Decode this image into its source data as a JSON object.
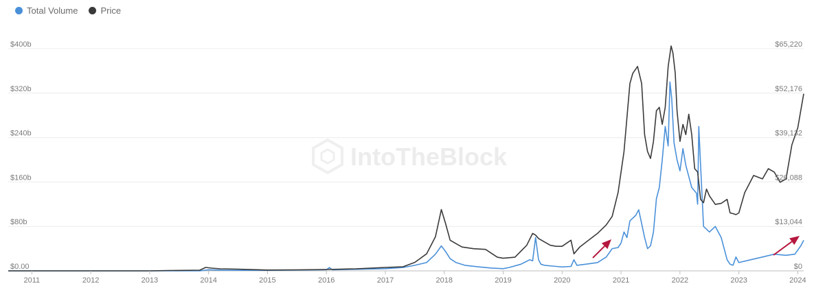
{
  "legend": {
    "items": [
      {
        "label": "Total Volume",
        "color": "#4a90d9"
      },
      {
        "label": "Price",
        "color": "#3a3a3a"
      }
    ]
  },
  "watermark": "IntoTheBlock",
  "chart_data": {
    "type": "line",
    "title": "",
    "xlabel": "",
    "x_ticks": [
      "2011",
      "2012",
      "2013",
      "2014",
      "2015",
      "2016",
      "2017",
      "2018",
      "2019",
      "2020",
      "2021",
      "2022",
      "2023",
      "2024"
    ],
    "xlim": [
      2010.6,
      2024.1
    ],
    "left_axis": {
      "ticks": [
        "$0.00",
        "$80b",
        "$160b",
        "$240b",
        "$320b",
        "$400b"
      ],
      "ylim": [
        0,
        400
      ]
    },
    "right_axis": {
      "ticks": [
        "$0",
        "$13,044",
        "$26,088",
        "$39,132",
        "$52,176",
        "$65,220"
      ],
      "ylim": [
        0,
        65220
      ]
    },
    "grid": true,
    "legend_position": "top-left",
    "series": [
      {
        "name": "Total Volume",
        "axis": "left",
        "unit": "b",
        "color": "#4a90d9",
        "x": [
          2010.6,
          2013.85,
          2014.0,
          2014.3,
          2015.0,
          2016.0,
          2016.05,
          2016.1,
          2016.6,
          2017.0,
          2017.3,
          2017.5,
          2017.7,
          2017.85,
          2017.95,
          2018.02,
          2018.1,
          2018.2,
          2018.35,
          2018.6,
          2018.8,
          2019.0,
          2019.1,
          2019.3,
          2019.45,
          2019.5,
          2019.55,
          2019.6,
          2019.62,
          2019.64,
          2019.7,
          2019.9,
          2020.0,
          2020.15,
          2020.2,
          2020.25,
          2020.4,
          2020.6,
          2020.75,
          2020.85,
          2020.95,
          2021.0,
          2021.05,
          2021.1,
          2021.15,
          2021.25,
          2021.3,
          2021.35,
          2021.4,
          2021.45,
          2021.5,
          2021.55,
          2021.6,
          2021.65,
          2021.7,
          2021.75,
          2021.8,
          2021.83,
          2021.86,
          2021.9,
          2021.95,
          2022.0,
          2022.05,
          2022.1,
          2022.15,
          2022.2,
          2022.28,
          2022.3,
          2022.32,
          2022.35,
          2022.4,
          2022.5,
          2022.6,
          2022.7,
          2022.75,
          2022.8,
          2022.85,
          2022.9,
          2022.95,
          2023.0,
          2023.2,
          2023.4,
          2023.6,
          2023.8,
          2023.95,
          2024.05,
          2024.1
        ],
        "values": [
          0,
          0,
          2,
          1,
          1,
          2,
          6,
          2,
          3,
          4,
          6,
          10,
          15,
          30,
          45,
          35,
          22,
          15,
          10,
          7,
          5,
          4,
          6,
          12,
          20,
          18,
          60,
          20,
          16,
          12,
          10,
          8,
          7,
          8,
          20,
          10,
          12,
          15,
          25,
          40,
          42,
          50,
          70,
          60,
          90,
          100,
          110,
          85,
          60,
          40,
          45,
          70,
          130,
          150,
          200,
          260,
          225,
          340,
          310,
          230,
          200,
          180,
          220,
          190,
          170,
          150,
          140,
          120,
          260,
          190,
          80,
          70,
          80,
          60,
          40,
          20,
          12,
          10,
          25,
          15,
          20,
          25,
          30,
          28,
          30,
          45,
          55
        ]
      },
      {
        "name": "Price",
        "axis": "right",
        "unit": "$",
        "color": "#3a3a3a",
        "x": [
          2010.6,
          2013.0,
          2013.3,
          2013.85,
          2013.95,
          2014.05,
          2014.2,
          2014.5,
          2015.0,
          2015.5,
          2016.0,
          2016.5,
          2017.0,
          2017.3,
          2017.5,
          2017.7,
          2017.85,
          2017.95,
          2018.02,
          2018.1,
          2018.2,
          2018.3,
          2018.5,
          2018.7,
          2018.9,
          2019.0,
          2019.2,
          2019.4,
          2019.5,
          2019.55,
          2019.6,
          2019.7,
          2019.8,
          2019.9,
          2020.0,
          2020.15,
          2020.2,
          2020.3,
          2020.45,
          2020.6,
          2020.75,
          2020.85,
          2020.95,
          2021.0,
          2021.05,
          2021.1,
          2021.15,
          2021.2,
          2021.28,
          2021.35,
          2021.4,
          2021.45,
          2021.5,
          2021.55,
          2021.6,
          2021.65,
          2021.7,
          2021.75,
          2021.8,
          2021.85,
          2021.88,
          2021.92,
          2021.95,
          2022.0,
          2022.05,
          2022.1,
          2022.15,
          2022.2,
          2022.25,
          2022.3,
          2022.35,
          2022.4,
          2022.45,
          2022.5,
          2022.6,
          2022.7,
          2022.8,
          2022.85,
          2022.9,
          2022.95,
          2023.0,
          2023.1,
          2023.25,
          2023.4,
          2023.5,
          2023.6,
          2023.7,
          2023.8,
          2023.9,
          2024.0,
          2024.05,
          2024.1
        ],
        "values": [
          0,
          10,
          100,
          200,
          1000,
          800,
          600,
          500,
          250,
          300,
          400,
          600,
          1000,
          1200,
          2500,
          5000,
          10000,
          18000,
          14000,
          9000,
          8000,
          7000,
          6500,
          6300,
          4000,
          3700,
          4000,
          7500,
          11000,
          10500,
          9500,
          8500,
          7500,
          7200,
          7200,
          9000,
          5000,
          7000,
          9000,
          11000,
          13500,
          16000,
          23000,
          29000,
          35000,
          45000,
          55000,
          58000,
          60000,
          55000,
          40000,
          35000,
          33000,
          38000,
          47000,
          48000,
          43000,
          48000,
          60000,
          66000,
          64000,
          58000,
          47000,
          38000,
          43000,
          40000,
          46000,
          40000,
          30000,
          29000,
          21000,
          20000,
          24000,
          22000,
          19500,
          19800,
          21000,
          17000,
          16800,
          16500,
          17000,
          23000,
          28000,
          27000,
          30000,
          29000,
          26000,
          27000,
          37000,
          42000,
          47000,
          52000
        ]
      }
    ]
  }
}
